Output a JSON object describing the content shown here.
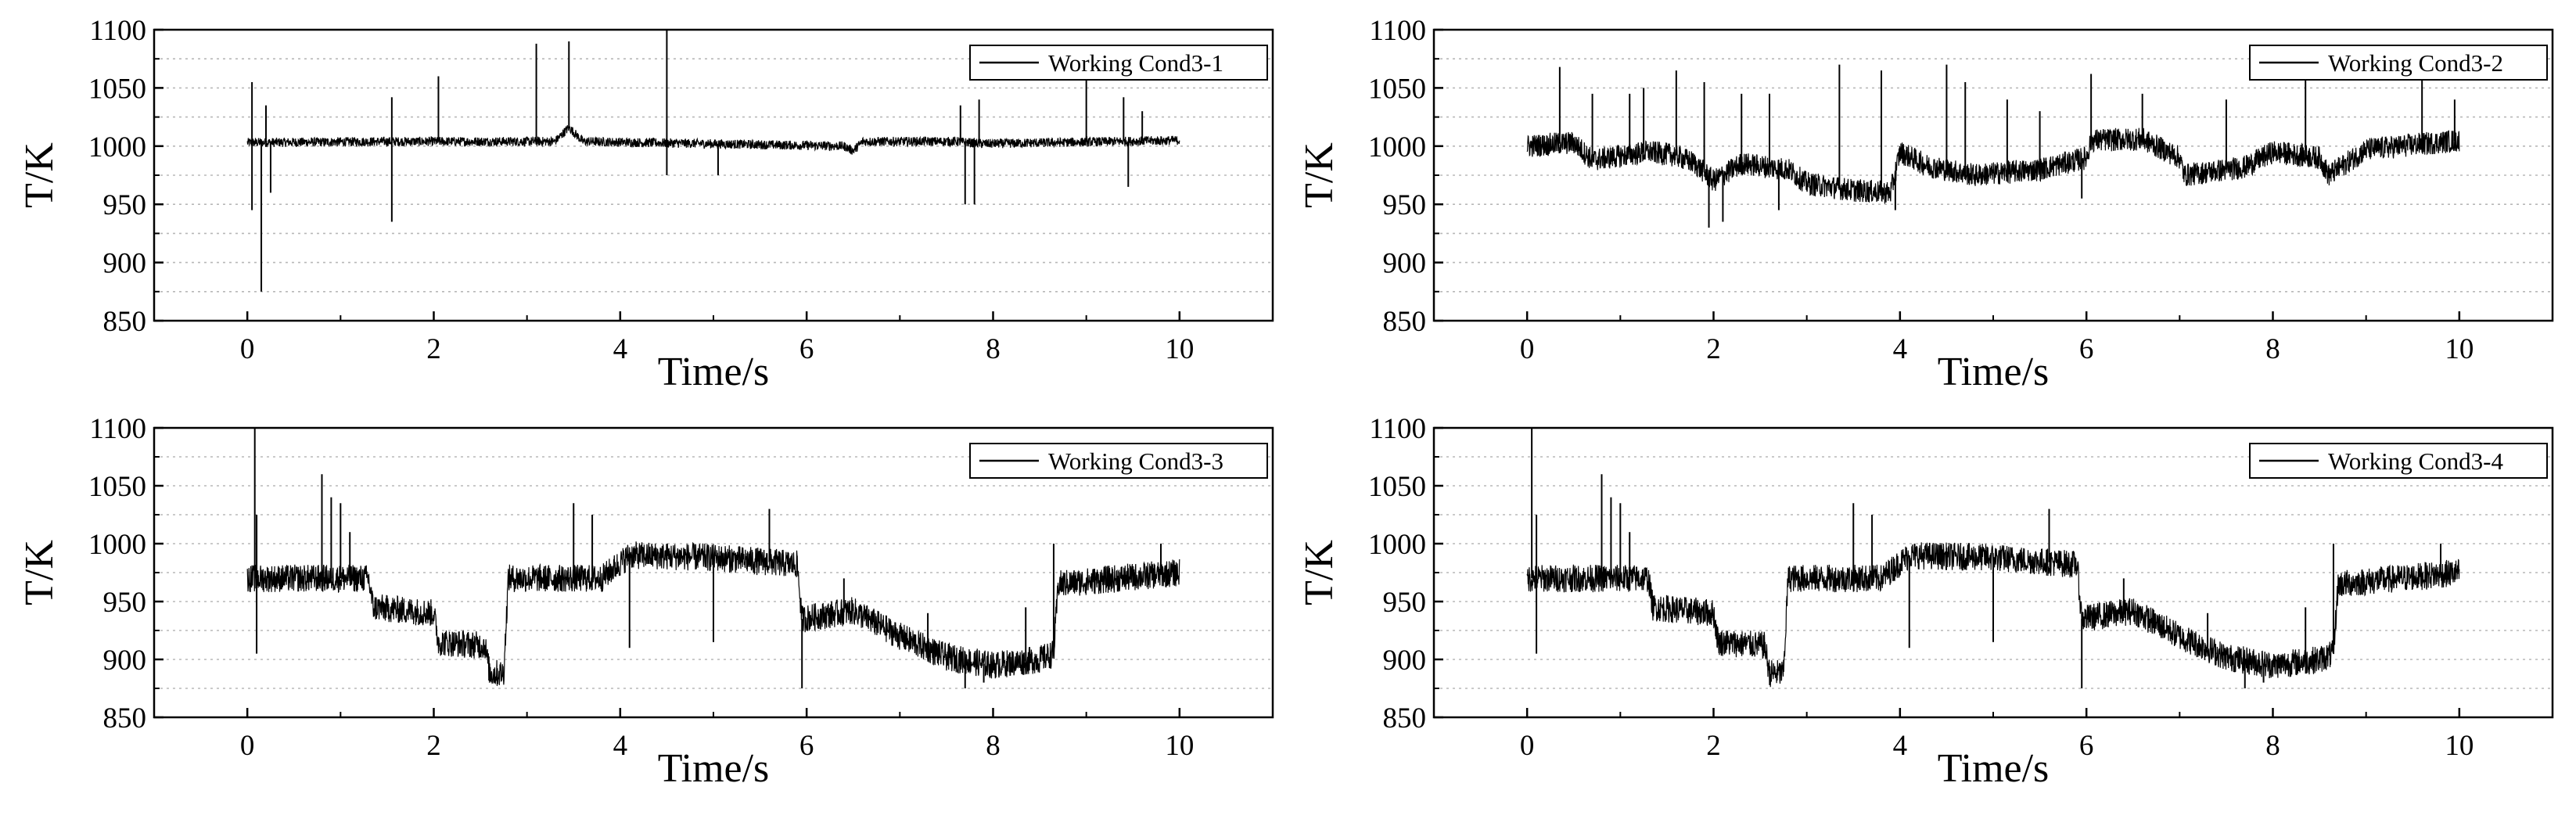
{
  "figure": {
    "panels": [
      {
        "id": "cond3-1",
        "xlabel": "Time/s",
        "ylabel": "T/K",
        "legend": "Working Cond3-1"
      },
      {
        "id": "cond3-2",
        "xlabel": "Time/s",
        "ylabel": "T/K",
        "legend": "Working Cond3-2"
      },
      {
        "id": "cond3-3",
        "xlabel": "Time/s",
        "ylabel": "T/K",
        "legend": "Working Cond3-3"
      },
      {
        "id": "cond3-4",
        "xlabel": "Time/s",
        "ylabel": "T/K",
        "legend": "Working Cond3-4"
      }
    ]
  },
  "chart_data": [
    {
      "type": "line",
      "xlabel": "Time/s",
      "ylabel": "T/K",
      "xlim": [
        -1,
        11
      ],
      "ylim": [
        850,
        1100
      ],
      "xticks": [
        0,
        2,
        4,
        6,
        8,
        10
      ],
      "yticks": [
        850,
        900,
        950,
        1000,
        1050,
        1100
      ],
      "grid": "horizontal dotted",
      "legend_position": "top-right",
      "color": "#000000",
      "series": [
        {
          "name": "Working Cond3-1",
          "segments": [
            [
              0,
              1003
            ],
            [
              1.5,
              1004
            ],
            [
              3.3,
              1004
            ],
            [
              3.45,
              1016
            ],
            [
              3.6,
              1004
            ],
            [
              6.4,
              1000
            ],
            [
              6.5,
              996
            ],
            [
              6.6,
              1004
            ],
            [
              7.6,
              1004
            ],
            [
              7.9,
              1002
            ],
            [
              10,
              1005
            ]
          ],
          "noise": 4,
          "spikes": [
            [
              0.05,
              1055
            ],
            [
              0.05,
              945
            ],
            [
              0.15,
              875
            ],
            [
              0.2,
              1035
            ],
            [
              0.25,
              960
            ],
            [
              1.55,
              1042
            ],
            [
              1.55,
              935
            ],
            [
              2.05,
              1060
            ],
            [
              3.1,
              1088
            ],
            [
              3.45,
              1090
            ],
            [
              4.5,
              1100
            ],
            [
              4.5,
              975
            ],
            [
              5.05,
              975
            ],
            [
              7.65,
              1035
            ],
            [
              7.7,
              950
            ],
            [
              7.8,
              950
            ],
            [
              7.85,
              1040
            ],
            [
              9.0,
              1060
            ],
            [
              9.4,
              1042
            ],
            [
              9.45,
              965
            ],
            [
              9.6,
              1030
            ]
          ]
        }
      ]
    },
    {
      "type": "line",
      "xlabel": "Time/s",
      "ylabel": "T/K",
      "xlim": [
        -1,
        11
      ],
      "ylim": [
        850,
        1100
      ],
      "xticks": [
        0,
        2,
        4,
        6,
        8,
        10
      ],
      "yticks": [
        850,
        900,
        950,
        1000,
        1050,
        1100
      ],
      "grid": "horizontal dotted",
      "legend_position": "top-right",
      "color": "#000000",
      "series": [
        {
          "name": "Working Cond3-2",
          "segments": [
            [
              0,
              1000
            ],
            [
              0.5,
              1003
            ],
            [
              0.7,
              988
            ],
            [
              1.3,
              995
            ],
            [
              1.6,
              992
            ],
            [
              1.8,
              985
            ],
            [
              2.0,
              970
            ],
            [
              2.3,
              985
            ],
            [
              2.8,
              980
            ],
            [
              3.0,
              968
            ],
            [
              3.5,
              962
            ],
            [
              3.9,
              960
            ],
            [
              4.0,
              995
            ],
            [
              4.3,
              983
            ],
            [
              4.8,
              975
            ],
            [
              5.5,
              980
            ],
            [
              6.0,
              990
            ],
            [
              6.05,
              1005
            ],
            [
              6.6,
              1006
            ],
            [
              7.0,
              990
            ],
            [
              7.05,
              975
            ],
            [
              7.7,
              982
            ],
            [
              8.0,
              995
            ],
            [
              8.5,
              990
            ],
            [
              8.6,
              975
            ],
            [
              9.0,
              997
            ],
            [
              10,
              1005
            ]
          ],
          "noise": 10,
          "spikes": [
            [
              0.35,
              1068
            ],
            [
              0.7,
              1045
            ],
            [
              1.1,
              1045
            ],
            [
              1.25,
              1050
            ],
            [
              1.6,
              1065
            ],
            [
              1.9,
              1055
            ],
            [
              1.95,
              930
            ],
            [
              2.1,
              935
            ],
            [
              2.3,
              1045
            ],
            [
              2.6,
              1045
            ],
            [
              2.7,
              945
            ],
            [
              3.35,
              1070
            ],
            [
              3.8,
              1065
            ],
            [
              3.95,
              945
            ],
            [
              4.5,
              1070
            ],
            [
              4.7,
              1055
            ],
            [
              5.15,
              1040
            ],
            [
              5.5,
              1030
            ],
            [
              5.95,
              955
            ],
            [
              6.05,
              1062
            ],
            [
              6.6,
              1045
            ],
            [
              7.5,
              1040
            ],
            [
              8.35,
              1065
            ],
            [
              9.6,
              1065
            ],
            [
              9.95,
              1040
            ]
          ]
        }
      ]
    },
    {
      "type": "line",
      "xlabel": "Time/s",
      "ylabel": "T/K",
      "xlim": [
        -1,
        11
      ],
      "ylim": [
        850,
        1100
      ],
      "xticks": [
        0,
        2,
        4,
        6,
        8,
        10
      ],
      "yticks": [
        850,
        900,
        950,
        1000,
        1050,
        1100
      ],
      "grid": "horizontal dotted",
      "legend_position": "top-right",
      "color": "#000000",
      "series": [
        {
          "name": "Working Cond3-3",
          "segments": [
            [
              0,
              970
            ],
            [
              1.3,
              970
            ],
            [
              1.35,
              945
            ],
            [
              2.0,
              940
            ],
            [
              2.05,
              915
            ],
            [
              2.55,
              912
            ],
            [
              2.6,
              888
            ],
            [
              2.75,
              888
            ],
            [
              2.8,
              970
            ],
            [
              3.8,
              970
            ],
            [
              4.1,
              990
            ],
            [
              5.0,
              988
            ],
            [
              5.9,
              982
            ],
            [
              5.95,
              935
            ],
            [
              6.5,
              942
            ],
            [
              7.0,
              920
            ],
            [
              7.5,
              902
            ],
            [
              8.0,
              895
            ],
            [
              8.5,
              900
            ],
            [
              8.65,
              905
            ],
            [
              8.7,
              965
            ],
            [
              10,
              975
            ]
          ],
          "noise": 12,
          "spikes": [
            [
              0.08,
              1100
            ],
            [
              0.1,
              1025
            ],
            [
              0.1,
              905
            ],
            [
              0.8,
              1060
            ],
            [
              0.9,
              1040
            ],
            [
              1.0,
              1035
            ],
            [
              1.1,
              1010
            ],
            [
              3.5,
              1035
            ],
            [
              3.7,
              1025
            ],
            [
              4.1,
              910
            ],
            [
              5.0,
              915
            ],
            [
              5.6,
              1030
            ],
            [
              5.95,
              875
            ],
            [
              6.4,
              970
            ],
            [
              7.3,
              940
            ],
            [
              7.4,
              905
            ],
            [
              7.7,
              875
            ],
            [
              7.9,
              880
            ],
            [
              8.35,
              945
            ],
            [
              8.65,
              1000
            ],
            [
              9.8,
              1000
            ]
          ]
        }
      ]
    },
    {
      "type": "line",
      "xlabel": "Time/s",
      "ylabel": "T/K",
      "xlim": [
        -1,
        11
      ],
      "ylim": [
        850,
        1100
      ],
      "xticks": [
        0,
        2,
        4,
        6,
        8,
        10
      ],
      "yticks": [
        850,
        900,
        950,
        1000,
        1050,
        1100
      ],
      "grid": "horizontal dotted",
      "legend_position": "top-right",
      "color": "#000000",
      "series": [
        {
          "name": "Working Cond3-4",
          "segments": [
            [
              0,
              970
            ],
            [
              1.3,
              970
            ],
            [
              1.35,
              945
            ],
            [
              2.0,
              940
            ],
            [
              2.05,
              915
            ],
            [
              2.55,
              912
            ],
            [
              2.6,
              888
            ],
            [
              2.75,
              888
            ],
            [
              2.8,
              970
            ],
            [
              3.8,
              970
            ],
            [
              4.1,
              990
            ],
            [
              5.0,
              988
            ],
            [
              5.9,
              982
            ],
            [
              5.95,
              935
            ],
            [
              6.5,
              942
            ],
            [
              7.0,
              920
            ],
            [
              7.5,
              902
            ],
            [
              8.0,
              895
            ],
            [
              8.5,
              900
            ],
            [
              8.65,
              905
            ],
            [
              8.7,
              965
            ],
            [
              10,
              975
            ]
          ],
          "noise": 12,
          "spikes": [
            [
              0.05,
              1100
            ],
            [
              0.1,
              1025
            ],
            [
              0.1,
              905
            ],
            [
              0.8,
              1060
            ],
            [
              0.9,
              1040
            ],
            [
              1.0,
              1035
            ],
            [
              1.1,
              1010
            ],
            [
              3.5,
              1035
            ],
            [
              3.7,
              1025
            ],
            [
              4.1,
              910
            ],
            [
              5.0,
              915
            ],
            [
              5.6,
              1030
            ],
            [
              5.95,
              875
            ],
            [
              6.4,
              970
            ],
            [
              7.3,
              940
            ],
            [
              7.4,
              905
            ],
            [
              7.7,
              875
            ],
            [
              7.9,
              880
            ],
            [
              8.35,
              945
            ],
            [
              8.65,
              1000
            ],
            [
              9.8,
              1000
            ]
          ]
        }
      ]
    }
  ]
}
